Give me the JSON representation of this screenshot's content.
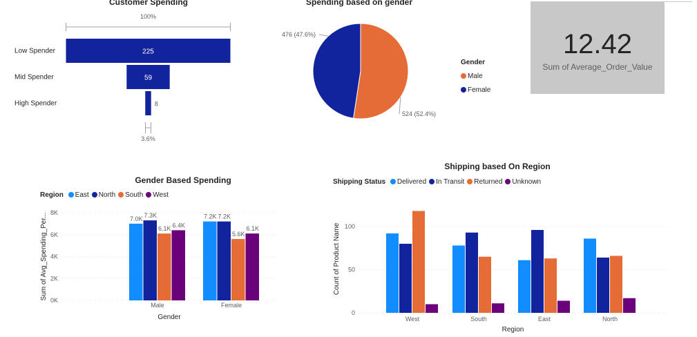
{
  "funnel": {
    "title": "Customer Spending",
    "top_percent": "100%",
    "bottom_percent": "3.6%",
    "chart_data": {
      "type": "funnel",
      "title": "Customer Spending",
      "categories": [
        "Low Spender",
        "Mid Spender",
        "High Spender"
      ],
      "values": [
        225,
        59,
        8
      ],
      "value_labels": [
        "225",
        "59",
        "8"
      ],
      "color": "#12239E"
    }
  },
  "pie": {
    "title": "Spending based on gender",
    "legend_title": "Gender",
    "chart_data": {
      "type": "pie",
      "title": "Spending based on gender",
      "categories": [
        "Male",
        "Female"
      ],
      "values": [
        524,
        476
      ],
      "data_labels": [
        "524 (52.4%)",
        "476 (47.6%)"
      ],
      "colors": [
        "#E66C37",
        "#12239E"
      ]
    }
  },
  "card": {
    "value": "12.42",
    "label": "Sum of Average_Order_Value"
  },
  "gender_chart": {
    "title": "Gender Based Spending",
    "legend_title": "Region",
    "chart_data": {
      "type": "bar",
      "title": "Gender Based Spending",
      "xlabel": "Gender",
      "ylabel": "Sum of Avg_Spending_Per...",
      "categories": [
        "Male",
        "Female"
      ],
      "ylim": [
        0,
        8000
      ],
      "yticks": [
        "0K",
        "2K",
        "4K",
        "6K",
        "8K"
      ],
      "series": [
        {
          "name": "East",
          "color": "#118DFF",
          "values": [
            7000,
            7200
          ],
          "labels": [
            "7.0K",
            "7.2K"
          ]
        },
        {
          "name": "North",
          "color": "#12239E",
          "values": [
            7300,
            7200
          ],
          "labels": [
            "7.3K",
            "7.2K"
          ]
        },
        {
          "name": "South",
          "color": "#E66C37",
          "values": [
            6100,
            5600
          ],
          "labels": [
            "6.1K",
            "5.6K"
          ]
        },
        {
          "name": "West",
          "color": "#6B007B",
          "values": [
            6400,
            6100
          ],
          "labels": [
            "6.4K",
            "6.1K"
          ]
        }
      ]
    }
  },
  "region_chart": {
    "title": "Shipping based On Region",
    "legend_title": "Shipping Status",
    "chart_data": {
      "type": "bar",
      "title": "Shipping based On Region",
      "xlabel": "Region",
      "ylabel": "Count of Product Name",
      "categories": [
        "West",
        "South",
        "East",
        "North"
      ],
      "ylim": [
        0,
        125
      ],
      "yticks": [
        "0",
        "50",
        "100"
      ],
      "series": [
        {
          "name": "Delivered",
          "color": "#118DFF",
          "values": [
            92,
            78,
            61,
            86
          ]
        },
        {
          "name": "In Transit",
          "color": "#12239E",
          "values": [
            80,
            93,
            96,
            64
          ]
        },
        {
          "name": "Returned",
          "color": "#E66C37",
          "values": [
            118,
            65,
            63,
            66
          ]
        },
        {
          "name": "Unknown",
          "color": "#6B007B",
          "values": [
            10,
            11,
            14,
            17
          ]
        }
      ]
    }
  }
}
